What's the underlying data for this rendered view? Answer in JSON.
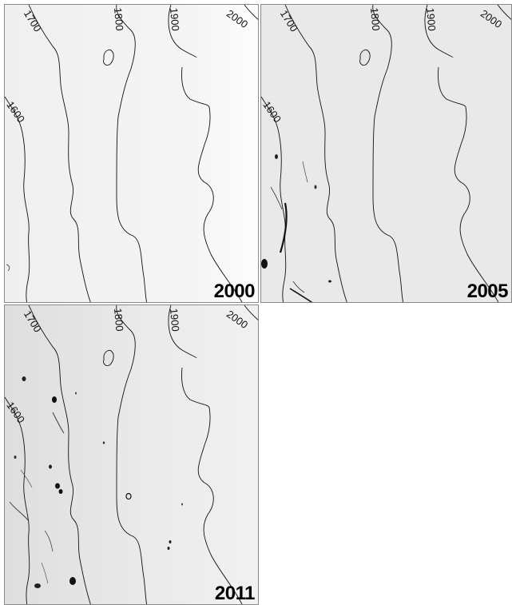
{
  "panels": [
    {
      "year": "2000",
      "background": "#f6f6f6",
      "contour_labels": [
        "1600",
        "1700",
        "1800",
        "1900",
        "2000"
      ]
    },
    {
      "year": "2005",
      "background": "#e9e9e9",
      "contour_labels": [
        "1600",
        "1700",
        "1800",
        "1900",
        "2000"
      ]
    },
    {
      "year": "2011",
      "background": "#ececec",
      "contour_labels": [
        "1600",
        "1700",
        "1800",
        "1900",
        "2000"
      ]
    }
  ]
}
